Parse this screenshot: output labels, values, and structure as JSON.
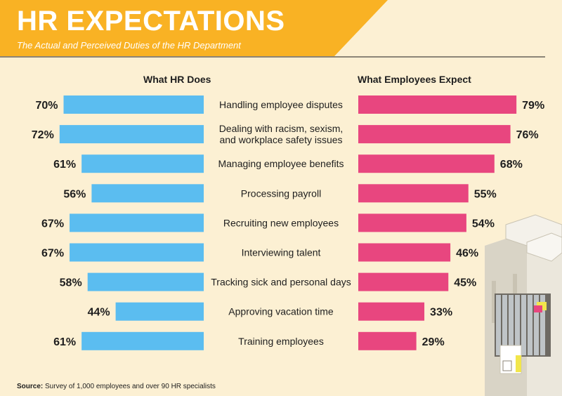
{
  "header": {
    "title": "HR EXPECTATIONS",
    "subtitle": "The Actual and Perceived Duties of the HR Department"
  },
  "source": {
    "label": "Source:",
    "text": "Survey of 1,000 employees and over 90 HR specialists"
  },
  "colors": {
    "banner": "#F9B224",
    "background": "#FCF0D3",
    "hr_bar": "#5BBDF0",
    "employee_bar": "#E8467F",
    "text": "#1E1E1E"
  },
  "chart_data": {
    "type": "bar",
    "orientation": "horizontal",
    "layout": "butterfly",
    "unit": "%",
    "xlim": [
      0,
      100
    ],
    "categories": [
      [
        "Handling employee disputes"
      ],
      [
        "Dealing with racism, sexism,",
        "and workplace safety issues"
      ],
      [
        "Managing employee benefits"
      ],
      [
        "Processing payroll"
      ],
      [
        "Recruiting new employees"
      ],
      [
        "Interviewing talent"
      ],
      [
        "Tracking sick and personal days"
      ],
      [
        "Approving vacation time"
      ],
      [
        "Training employees"
      ]
    ],
    "series": [
      {
        "name": "What HR Does",
        "side": "left",
        "values": [
          70,
          72,
          61,
          56,
          67,
          67,
          58,
          44,
          61
        ]
      },
      {
        "name": "What Employees Expect",
        "side": "right",
        "values": [
          79,
          76,
          68,
          55,
          54,
          46,
          45,
          33,
          29
        ]
      }
    ]
  }
}
